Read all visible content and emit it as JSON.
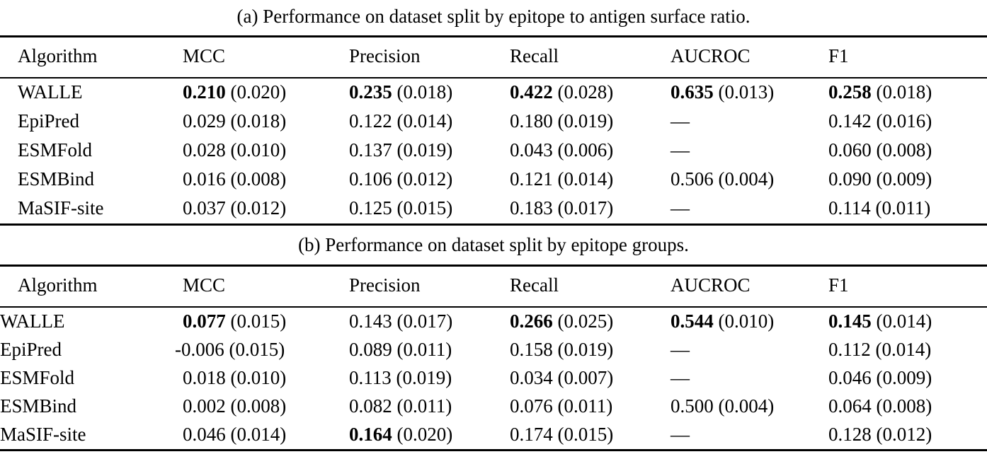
{
  "page": {
    "background_color": "#ffffff",
    "text_color": "#000000"
  },
  "tables": [
    {
      "caption": "(a) Performance on dataset split by epitope to antigen surface ratio.",
      "columns": [
        "Algorithm",
        "MCC",
        "Precision",
        "Recall",
        "AUCROC",
        "F1"
      ],
      "rows": [
        {
          "algorithm": "WALLE",
          "metrics": [
            {
              "value": "0.210",
              "std": "(0.020)",
              "bold": true
            },
            {
              "value": "0.235",
              "std": "(0.018)",
              "bold": true
            },
            {
              "value": "0.422",
              "std": "(0.028)",
              "bold": true
            },
            {
              "value": "0.635",
              "std": "(0.013)",
              "bold": true
            },
            {
              "value": "0.258",
              "std": "(0.018)",
              "bold": true
            }
          ]
        },
        {
          "algorithm": "EpiPred",
          "metrics": [
            {
              "value": "0.029",
              "std": "(0.018)",
              "bold": false
            },
            {
              "value": "0.122",
              "std": "(0.014)",
              "bold": false
            },
            {
              "value": "0.180",
              "std": "(0.019)",
              "bold": false
            },
            {
              "value": "—",
              "std": "",
              "bold": false
            },
            {
              "value": "0.142",
              "std": "(0.016)",
              "bold": false
            }
          ]
        },
        {
          "algorithm": "ESMFold",
          "metrics": [
            {
              "value": "0.028",
              "std": "(0.010)",
              "bold": false
            },
            {
              "value": "0.137",
              "std": "(0.019)",
              "bold": false
            },
            {
              "value": "0.043",
              "std": "(0.006)",
              "bold": false
            },
            {
              "value": "—",
              "std": "",
              "bold": false
            },
            {
              "value": "0.060",
              "std": "(0.008)",
              "bold": false
            }
          ]
        },
        {
          "algorithm": "ESMBind",
          "metrics": [
            {
              "value": "0.016",
              "std": "(0.008)",
              "bold": false
            },
            {
              "value": "0.106",
              "std": "(0.012)",
              "bold": false
            },
            {
              "value": "0.121",
              "std": "(0.014)",
              "bold": false
            },
            {
              "value": "0.506",
              "std": "(0.004)",
              "bold": false
            },
            {
              "value": "0.090",
              "std": "(0.009)",
              "bold": false
            }
          ]
        },
        {
          "algorithm": "MaSIF-site",
          "metrics": [
            {
              "value": "0.037",
              "std": "(0.012)",
              "bold": false
            },
            {
              "value": "0.125",
              "std": "(0.015)",
              "bold": false
            },
            {
              "value": "0.183",
              "std": "(0.017)",
              "bold": false
            },
            {
              "value": "—",
              "std": "",
              "bold": false
            },
            {
              "value": "0.114",
              "std": "(0.011)",
              "bold": false
            }
          ]
        }
      ]
    },
    {
      "caption": "(b) Performance on dataset split by epitope groups.",
      "columns": [
        "Algorithm",
        "MCC",
        "Precision",
        "Recall",
        "AUCROC",
        "F1"
      ],
      "rows": [
        {
          "algorithm": "WALLE",
          "metrics": [
            {
              "value": "0.077",
              "std": "(0.015)",
              "bold": true
            },
            {
              "value": "0.143",
              "std": "(0.017)",
              "bold": false
            },
            {
              "value": "0.266",
              "std": "(0.025)",
              "bold": true
            },
            {
              "value": "0.544",
              "std": "(0.010)",
              "bold": true
            },
            {
              "value": "0.145",
              "std": "(0.014)",
              "bold": true
            }
          ]
        },
        {
          "algorithm": "EpiPred",
          "metrics": [
            {
              "value": "-0.006",
              "std": "(0.015)",
              "bold": false
            },
            {
              "value": "0.089",
              "std": "(0.011)",
              "bold": false
            },
            {
              "value": "0.158",
              "std": "(0.019)",
              "bold": false
            },
            {
              "value": "—",
              "std": "",
              "bold": false
            },
            {
              "value": "0.112",
              "std": "(0.014)",
              "bold": false
            }
          ]
        },
        {
          "algorithm": "ESMFold",
          "metrics": [
            {
              "value": "0.018",
              "std": "(0.010)",
              "bold": false
            },
            {
              "value": "0.113",
              "std": "(0.019)",
              "bold": false
            },
            {
              "value": "0.034",
              "std": "(0.007)",
              "bold": false
            },
            {
              "value": "—",
              "std": "",
              "bold": false
            },
            {
              "value": "0.046",
              "std": "(0.009)",
              "bold": false
            }
          ]
        },
        {
          "algorithm": "ESMBind",
          "metrics": [
            {
              "value": "0.002",
              "std": "(0.008)",
              "bold": false
            },
            {
              "value": "0.082",
              "std": "(0.011)",
              "bold": false
            },
            {
              "value": "0.076",
              "std": "(0.011)",
              "bold": false
            },
            {
              "value": "0.500",
              "std": "(0.004)",
              "bold": false
            },
            {
              "value": "0.064",
              "std": "(0.008)",
              "bold": false
            }
          ]
        },
        {
          "algorithm": "MaSIF-site",
          "metrics": [
            {
              "value": "0.046",
              "std": "(0.014)",
              "bold": false
            },
            {
              "value": "0.164",
              "std": "(0.020)",
              "bold": true
            },
            {
              "value": "0.174",
              "std": "(0.015)",
              "bold": false
            },
            {
              "value": "—",
              "std": "",
              "bold": false
            },
            {
              "value": "0.128",
              "std": "(0.012)",
              "bold": false
            }
          ]
        }
      ]
    }
  ]
}
